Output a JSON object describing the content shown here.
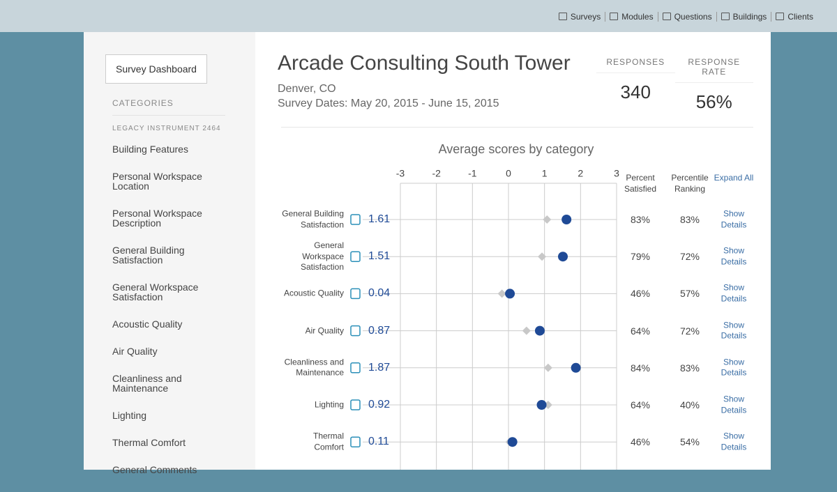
{
  "nav": {
    "items": [
      "Surveys",
      "Modules",
      "Questions",
      "Buildings",
      "Clients"
    ]
  },
  "sidebar": {
    "button": "Survey Dashboard",
    "heading": "CATEGORIES",
    "group": "LEGACY INSTRUMENT 2464",
    "items": [
      "Building Features",
      "Personal Workspace Location",
      "Personal Workspace Description",
      "General Building Satisfaction",
      "General Workspace Satisfaction",
      "Acoustic Quality",
      "Air Quality",
      "Cleanliness and Maintenance",
      "Lighting",
      "Thermal Comfort",
      "General Comments"
    ]
  },
  "header": {
    "title": "Arcade Consulting South Tower",
    "location": "Denver, CO",
    "dates": "Survey Dates: May 20, 2015 - June 15, 2015"
  },
  "stats": [
    {
      "label": "RESPONSES",
      "value": 340
    },
    {
      "label": "RESPONSE RATE",
      "value": "56%"
    }
  ],
  "chart_data": {
    "type": "dot",
    "title": "Average scores by category",
    "categories": [
      "General Building Satisfaction",
      "General Workspace Satisfaction",
      "Acoustic Quality",
      "Air Quality",
      "Cleanliness and Maintenance",
      "Lighting",
      "Thermal Comfort"
    ],
    "series": [
      {
        "color": "#1f4a96",
        "marker": "circle",
        "values": [
          1.61,
          1.51,
          0.04,
          0.87,
          1.87,
          0.92,
          0.11
        ]
      },
      {
        "color": "#c8c8c8",
        "marker": "diamond",
        "values": [
          1.07,
          0.93,
          -0.18,
          0.5,
          1.1,
          1.1,
          0.03
        ]
      }
    ],
    "xlim": [
      -3,
      3
    ],
    "xticks": [
      -3,
      -2,
      -1,
      0,
      1,
      2,
      3
    ],
    "grid": true
  },
  "table": {
    "headers": [
      "Percent Satisfied",
      "Percentile Ranking",
      "Expand All"
    ],
    "rows": [
      [
        "83%",
        "83%",
        "Show Details"
      ],
      [
        "79%",
        "72%",
        "Show Details"
      ],
      [
        "46%",
        "57%",
        "Show Details"
      ],
      [
        "64%",
        "72%",
        "Show Details"
      ],
      [
        "84%",
        "83%",
        "Show Details"
      ],
      [
        "64%",
        "40%",
        "Show Details"
      ],
      [
        "46%",
        "54%",
        "Show Details"
      ]
    ]
  }
}
